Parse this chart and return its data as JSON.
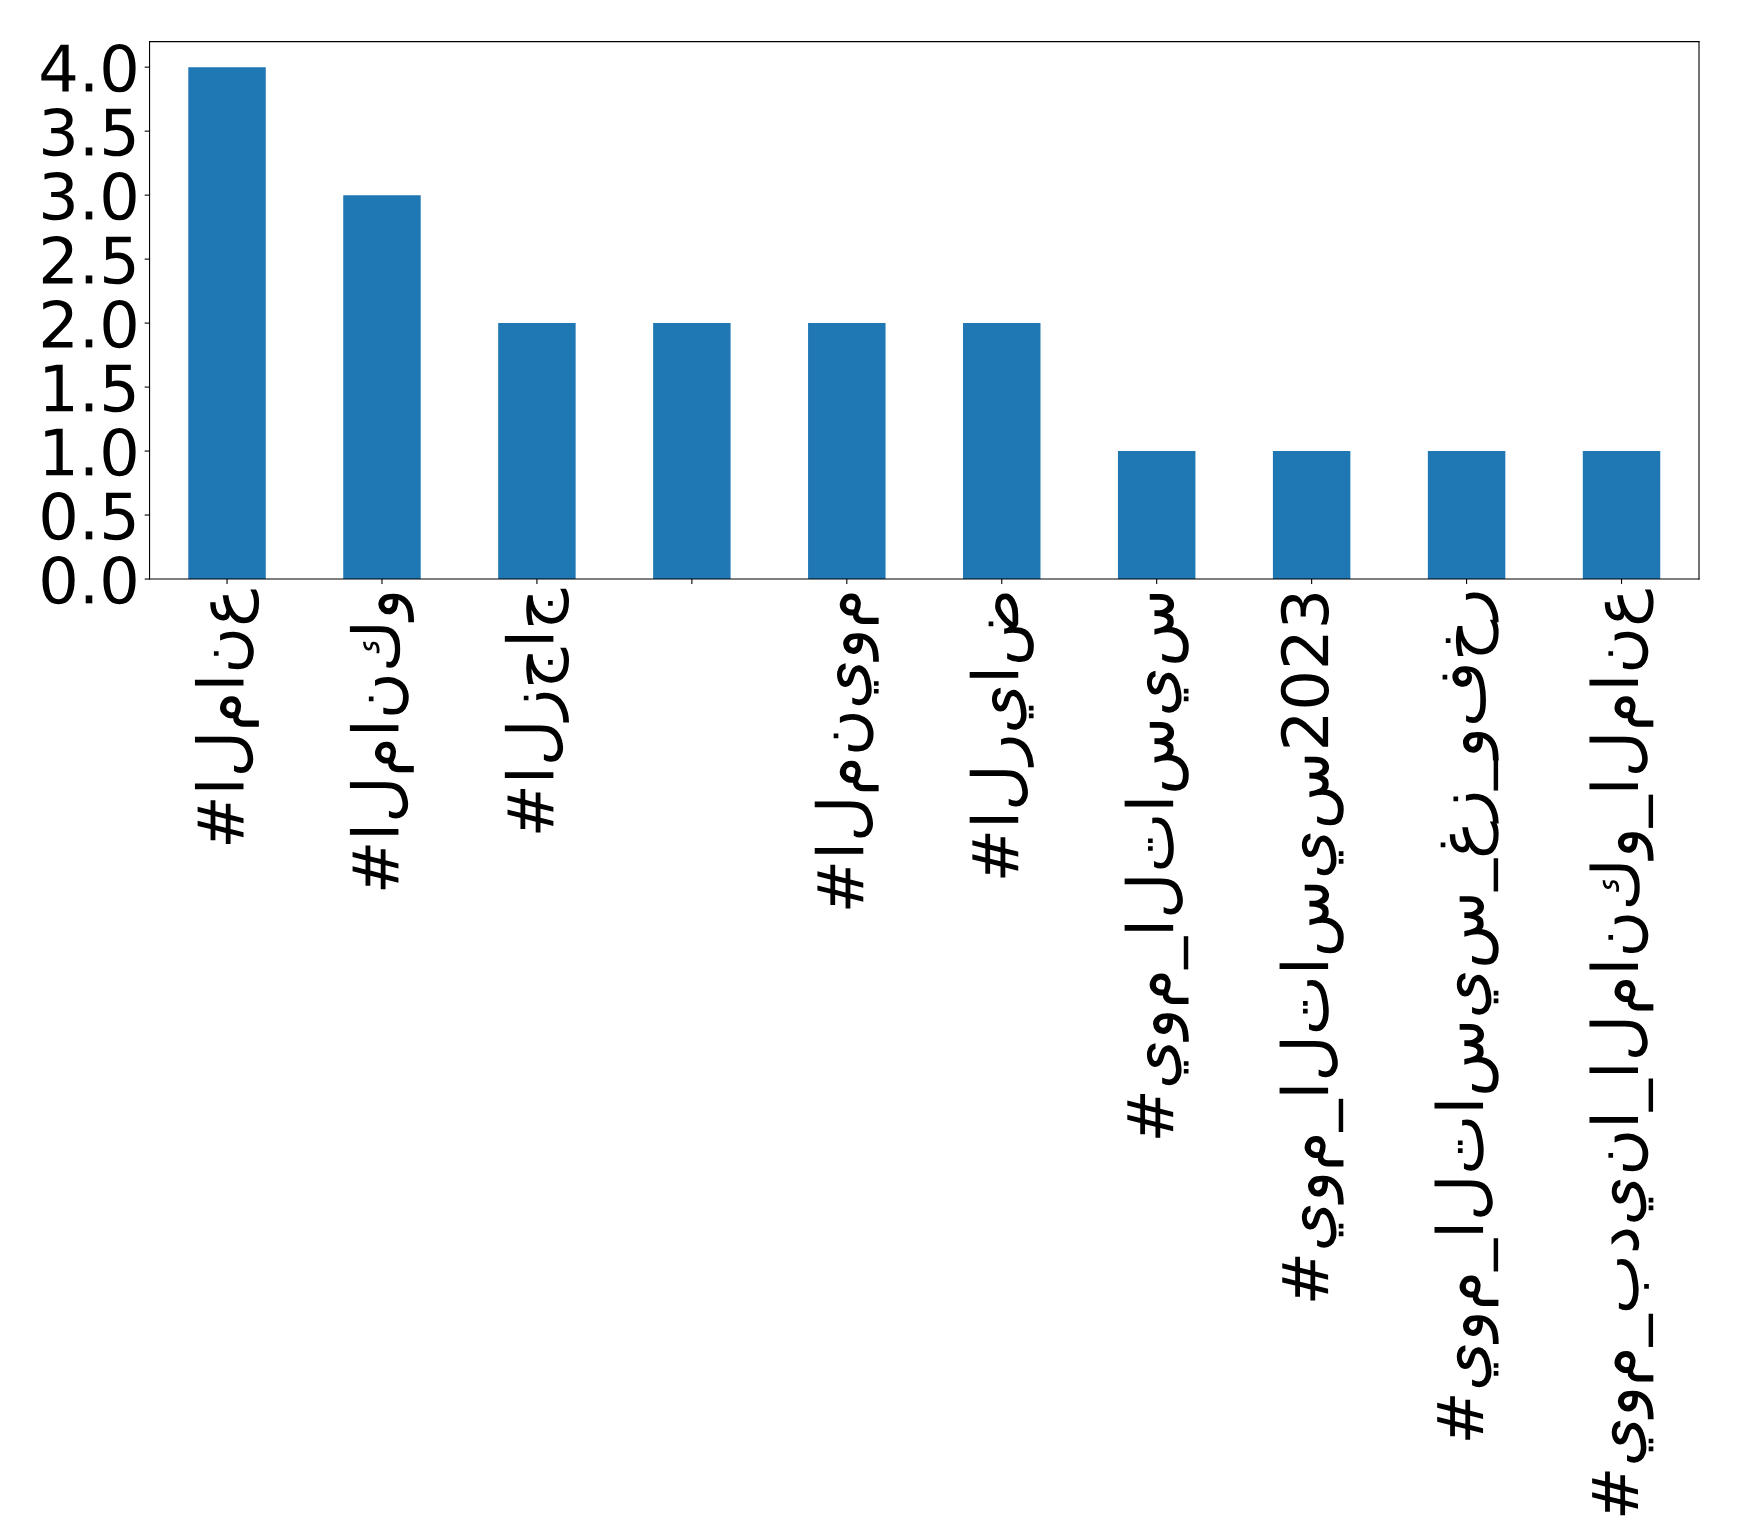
{
  "chart_data": {
    "type": "bar",
    "categories": [
      "#المانع",
      "#المانكو",
      "#الزجاج",
      null,
      "#المنيوم",
      "#الرياض",
      "#يوم_التاسيس",
      "#يوم_التاسيس2023",
      "#يوم_التاسيس_غز_وفخر",
      "#يوم_بدينا_المانكو_المانع"
    ],
    "values": [
      4,
      3,
      2,
      2,
      2,
      2,
      1,
      1,
      1,
      1
    ],
    "color": "#1f77b4",
    "ylim": [
      0,
      4.2
    ],
    "yticks": [
      {
        "value": 0,
        "label": "0.0"
      },
      0.5,
      {
        "value": 1,
        "label": "1.0"
      },
      1.5,
      {
        "value": 2,
        "label": "2.0"
      },
      2.5,
      {
        "value": 3,
        "label": "3.0"
      },
      3.5,
      {
        "value": 4,
        "label": "4.0"
      }
    ],
    "grid": false,
    "legend": false
  }
}
